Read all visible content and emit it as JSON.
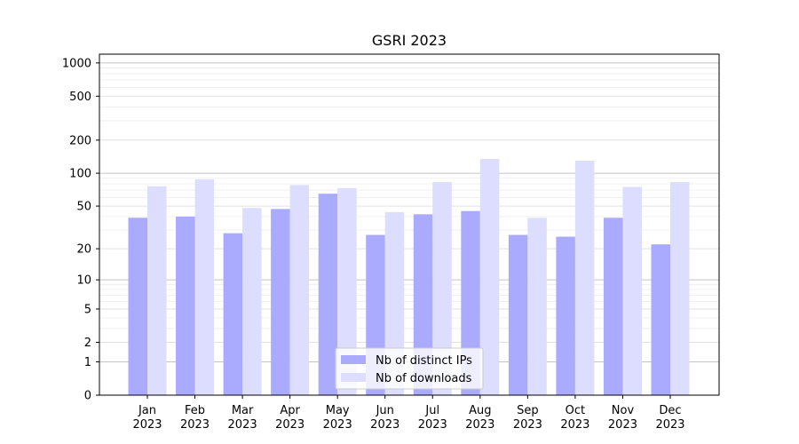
{
  "chart_data": {
    "type": "bar",
    "title": "GSRI 2023",
    "xlabel": "",
    "ylabel": "",
    "y_scale": "log(1+y)",
    "ylim": [
      0,
      1200
    ],
    "grid": "horizontal",
    "legend_position": "bottom-center",
    "categories": [
      [
        "Jan",
        "2023"
      ],
      [
        "Feb",
        "2023"
      ],
      [
        "Mar",
        "2023"
      ],
      [
        "Apr",
        "2023"
      ],
      [
        "May",
        "2023"
      ],
      [
        "Jun",
        "2023"
      ],
      [
        "Jul",
        "2023"
      ],
      [
        "Aug",
        "2023"
      ],
      [
        "Sep",
        "2023"
      ],
      [
        "Oct",
        "2023"
      ],
      [
        "Nov",
        "2023"
      ],
      [
        "Dec",
        "2023"
      ]
    ],
    "y_ticks": [
      0,
      1,
      2,
      5,
      10,
      20,
      50,
      100,
      200,
      500,
      1000
    ],
    "series": [
      {
        "name": "Nb of distinct IPs",
        "color": "#aaaaff",
        "values": [
          39,
          40,
          28,
          47,
          65,
          27,
          42,
          45,
          27,
          26,
          39,
          22
        ]
      },
      {
        "name": "Nb of downloads",
        "color": "#ddddff",
        "values": [
          76,
          88,
          48,
          78,
          73,
          44,
          83,
          135,
          39,
          130,
          75,
          83
        ]
      }
    ]
  }
}
